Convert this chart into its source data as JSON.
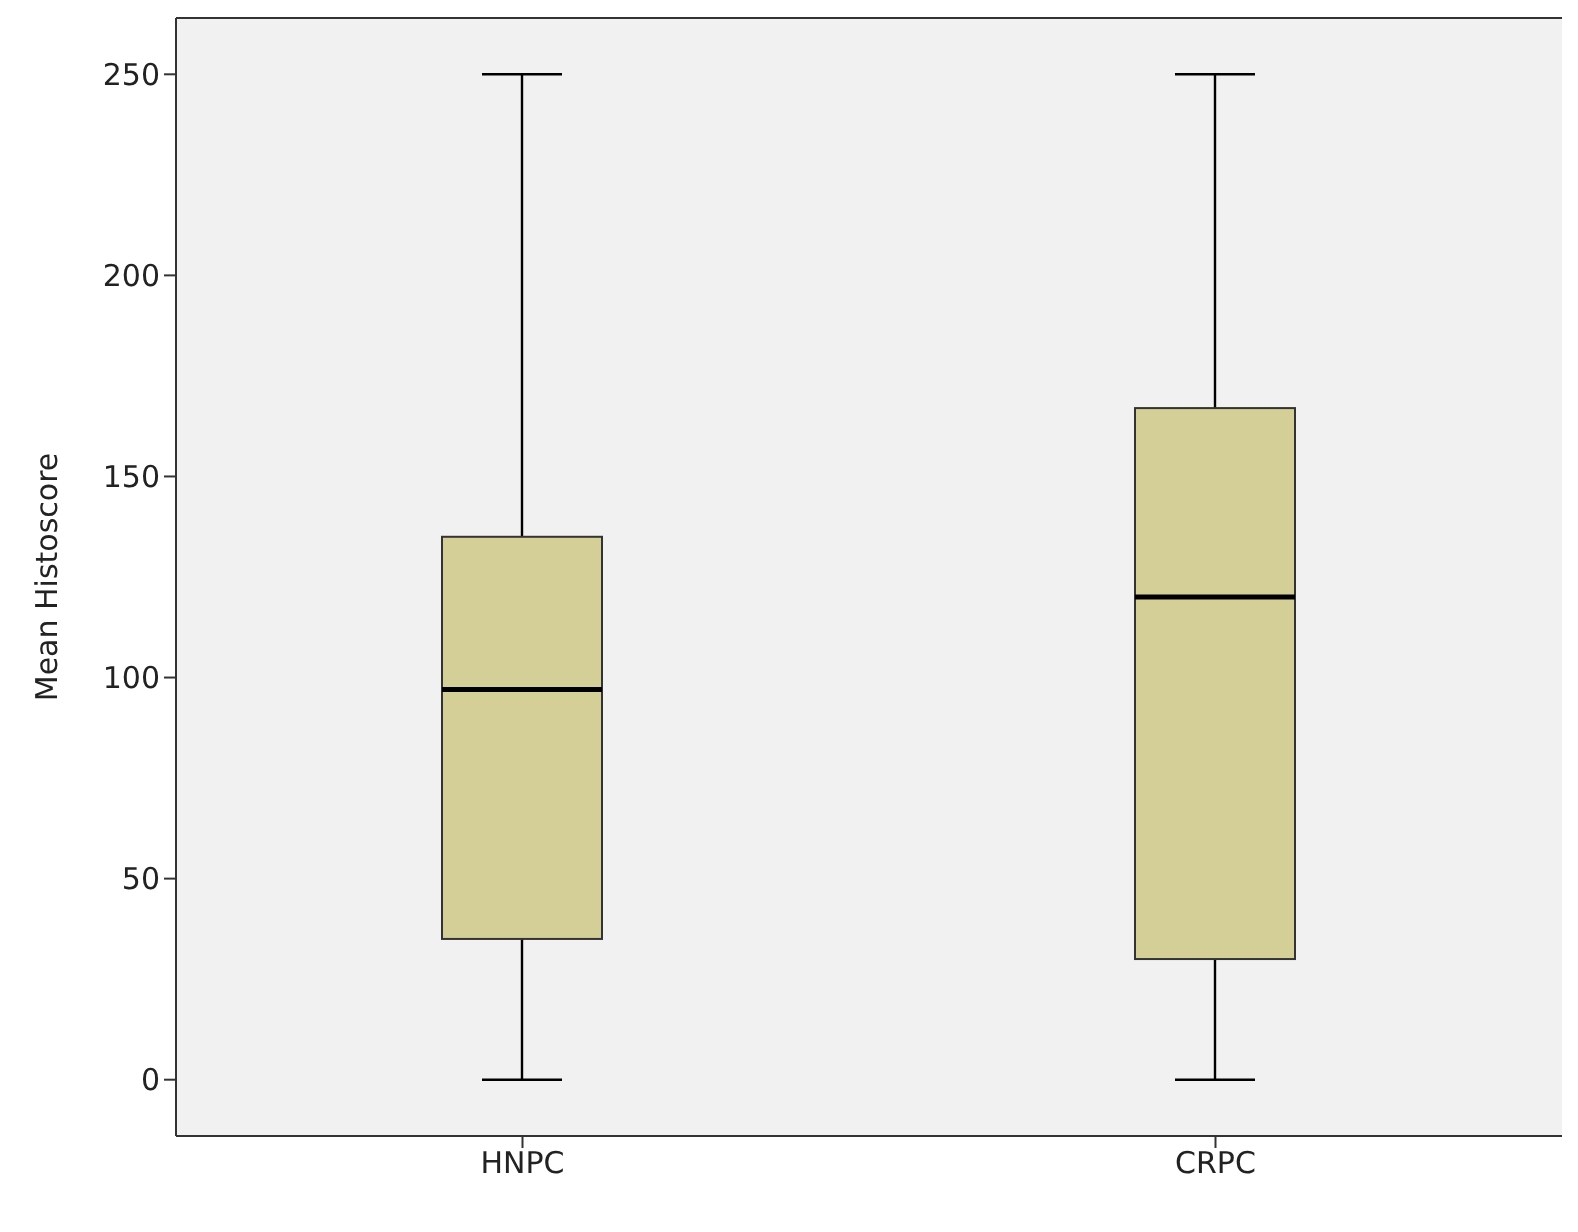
{
  "chart_data": {
    "type": "box",
    "ylabel": "Mean Histoscore",
    "categories": [
      "HNPC",
      "CRPC"
    ],
    "color": "#d3cf96",
    "boxes": [
      {
        "low": 0,
        "q1": 35,
        "median": 97,
        "q3": 135,
        "high": 250
      },
      {
        "low": 0,
        "q1": 30,
        "median": 120,
        "q3": 167,
        "high": 250
      }
    ],
    "ylim": [
      -14,
      264
    ],
    "yticks": [
      0,
      50,
      100,
      150,
      200,
      250
    ],
    "grid": false
  }
}
